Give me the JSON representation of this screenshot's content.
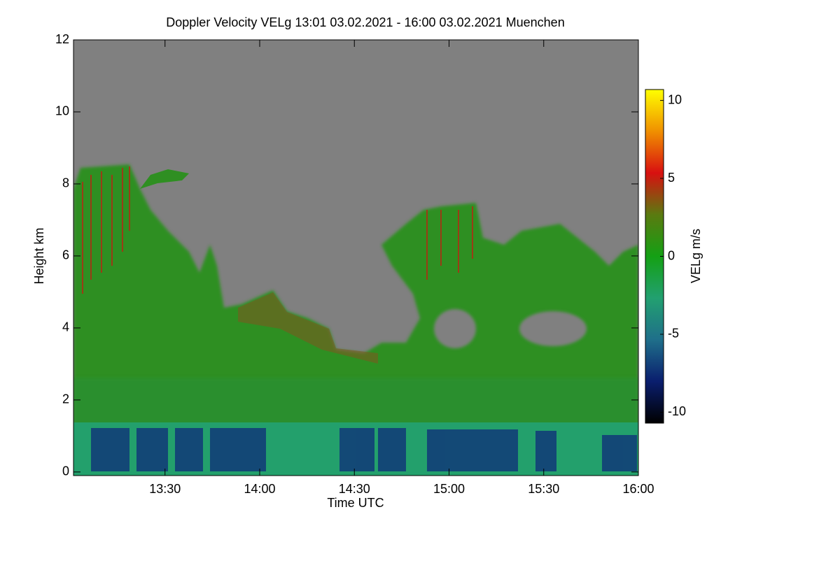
{
  "chart_data": {
    "type": "heatmap",
    "title": "Doppler Velocity VELg   13:01 03.02.2021 - 16:00 03.02.2021 Muenchen",
    "xlabel": "Time UTC",
    "ylabel": "Height km",
    "colorbar_label": "VELg m/s",
    "xlim": [
      781,
      960
    ],
    "xticks": [
      {
        "value": 810,
        "label": "13:30"
      },
      {
        "value": 840,
        "label": "14:00"
      },
      {
        "value": 870,
        "label": "14:30"
      },
      {
        "value": 900,
        "label": "15:00"
      },
      {
        "value": 930,
        "label": "15:30"
      },
      {
        "value": 960,
        "label": "16:00"
      }
    ],
    "ylim": [
      -0.1,
      12
    ],
    "yticks": [
      0,
      2,
      4,
      6,
      8,
      10,
      12
    ],
    "clim": [
      -10.7,
      10.7
    ],
    "cticks": [
      -10,
      -5,
      0,
      5,
      10
    ],
    "colormap": [
      "#000000",
      "#0a1e6e",
      "#1f6f8a",
      "#22a070",
      "#14a014",
      "#5a7a10",
      "#d81010",
      "#f09000",
      "#ffff00"
    ]
  }
}
